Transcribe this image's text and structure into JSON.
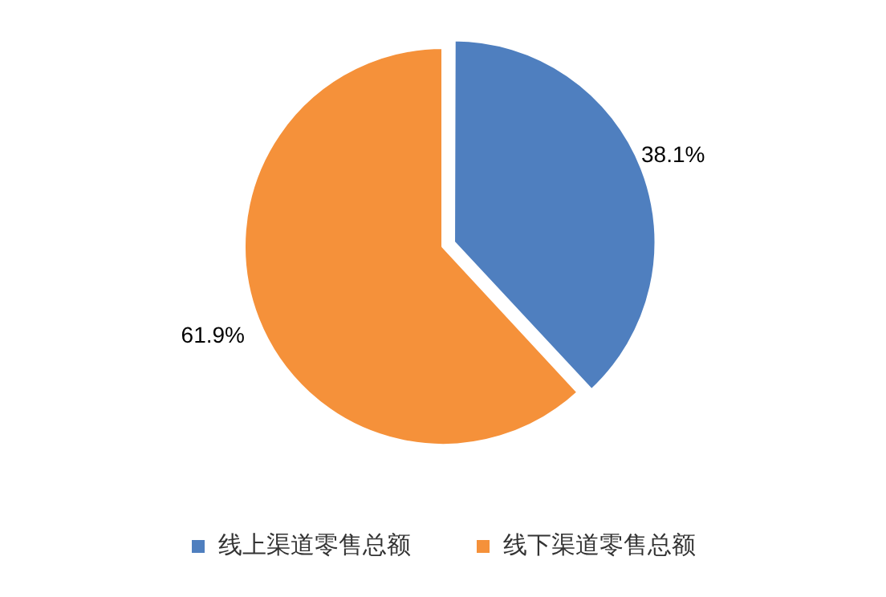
{
  "chart_data": {
    "type": "pie",
    "categories": [
      "线上渠道零售总额",
      "线下渠道零售总额"
    ],
    "values": [
      38.1,
      61.9
    ],
    "colors": [
      "#4f7fbf",
      "#f5913a"
    ],
    "value_labels": [
      "38.1%",
      "61.9%"
    ],
    "legend": "bottom"
  }
}
